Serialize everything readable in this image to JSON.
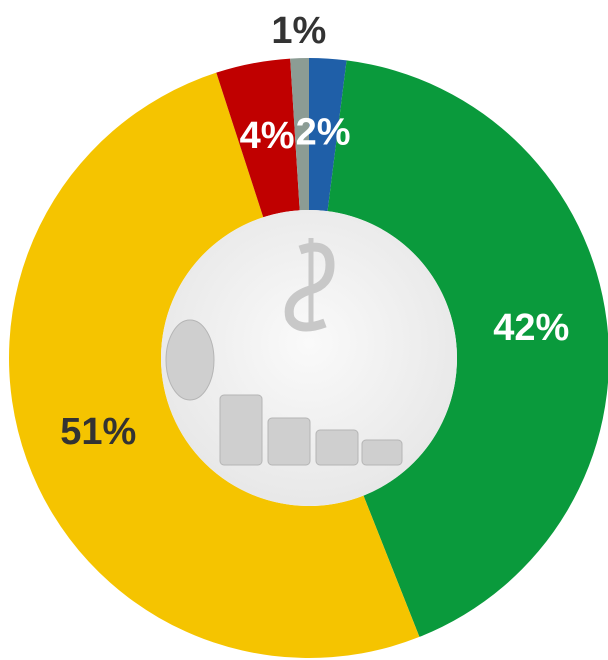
{
  "chart_data": {
    "type": "donut",
    "values": [
      2,
      42,
      51,
      4,
      1
    ],
    "value_labels": [
      "2%",
      "42%",
      "51%",
      "4%",
      "1%"
    ],
    "colors": [
      "#1f5fa8",
      "#0a9a3c",
      "#f5c400",
      "#c00000",
      "#8c9c94"
    ],
    "label_colors": [
      "#ffffff",
      "#ffffff",
      "#333333",
      "#ffffff",
      "#333333"
    ]
  }
}
